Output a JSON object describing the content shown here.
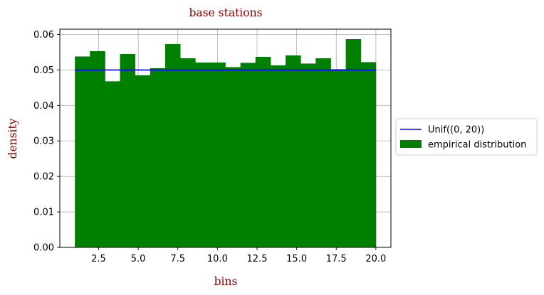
{
  "chart_data": {
    "type": "bar",
    "title": "base stations",
    "xlabel": "bins",
    "ylabel": "density",
    "xlim": [
      0.05,
      20.95
    ],
    "ylim": [
      0,
      0.0615
    ],
    "x_ticks": [
      2.5,
      5.0,
      7.5,
      10.0,
      12.5,
      15.0,
      17.5,
      20.0
    ],
    "x_tick_labels": [
      "2.5",
      "5.0",
      "7.5",
      "10.0",
      "12.5",
      "15.0",
      "17.5",
      "20.0"
    ],
    "y_ticks": [
      0.0,
      0.01,
      0.02,
      0.03,
      0.04,
      0.05,
      0.06
    ],
    "y_tick_labels": [
      "0.00",
      "0.01",
      "0.02",
      "0.03",
      "0.04",
      "0.05",
      "0.06"
    ],
    "grid": true,
    "legend_position": "outside-right",
    "bins": {
      "edges": [
        1.0,
        1.95,
        2.9,
        3.85,
        4.8,
        5.75,
        6.7,
        7.65,
        8.6,
        9.55,
        10.5,
        11.45,
        12.4,
        13.35,
        14.3,
        15.25,
        16.2,
        17.15,
        18.1,
        19.05,
        20.0
      ],
      "values": [
        0.0538,
        0.0553,
        0.0468,
        0.0545,
        0.0485,
        0.0505,
        0.0573,
        0.0533,
        0.0521,
        0.0521,
        0.0508,
        0.052,
        0.0537,
        0.0513,
        0.0541,
        0.0518,
        0.0533,
        0.0502,
        0.0587,
        0.0522
      ],
      "name": "empirical distribution",
      "color": "#008000"
    },
    "reference_line": {
      "name": "Unif((0, 20))",
      "x": [
        1.0,
        20.0
      ],
      "y": [
        0.05,
        0.05
      ],
      "color": "#0000ff"
    },
    "colors": {
      "title": "#8b0000",
      "axis_label": "#8b0000",
      "grid": "#b0b0b0"
    }
  }
}
